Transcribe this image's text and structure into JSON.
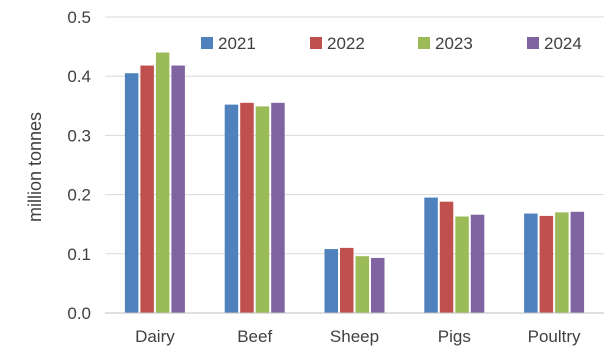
{
  "chart_data": {
    "type": "bar",
    "title": "",
    "xlabel": "",
    "ylabel": "million tonnes",
    "ylim": [
      0,
      0.5
    ],
    "yticks": [
      "0.0",
      "0.1",
      "0.2",
      "0.3",
      "0.4",
      "0.5"
    ],
    "grid": true,
    "legend_position": "top-right",
    "categories": [
      "Dairy",
      "Beef",
      "Sheep",
      "Pigs",
      "Poultry"
    ],
    "series": [
      {
        "name": "2021",
        "color": "#4f81bd",
        "values": [
          0.405,
          0.352,
          0.108,
          0.195,
          0.168
        ]
      },
      {
        "name": "2022",
        "color": "#c0504d",
        "values": [
          0.418,
          0.355,
          0.11,
          0.188,
          0.164
        ]
      },
      {
        "name": "2023",
        "color": "#9bbb59",
        "values": [
          0.44,
          0.349,
          0.096,
          0.163,
          0.17
        ]
      },
      {
        "name": "2024",
        "color": "#8064a2",
        "values": [
          0.418,
          0.355,
          0.093,
          0.166,
          0.171
        ]
      }
    ]
  }
}
